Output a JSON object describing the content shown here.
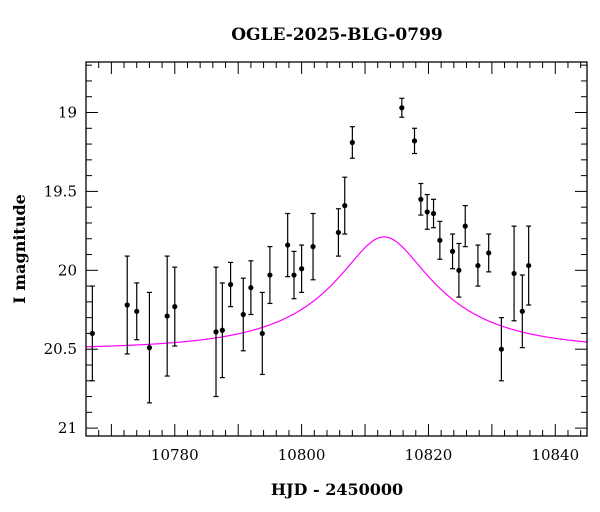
{
  "chart_data": {
    "type": "scatter",
    "title": "OGLE-2025-BLG-0799",
    "xlabel": "HJD - 2450000",
    "ylabel": "I magnitude",
    "xlim": [
      10766,
      10845
    ],
    "ylim": [
      21.05,
      18.68
    ],
    "y_inverted": true,
    "x_ticks": [
      10780,
      10800,
      10820,
      10840
    ],
    "y_ticks": [
      19,
      19.5,
      20,
      20.5,
      21
    ],
    "x_tick_labels": [
      "10780",
      "10800",
      "10820",
      "10840"
    ],
    "y_tick_labels": [
      "19",
      "19.5",
      "20",
      "20.5",
      "21"
    ],
    "grid": false,
    "colors": {
      "points": "#000000",
      "model": "#ff00ff"
    },
    "points": [
      {
        "x": 10767.0,
        "y": 20.4,
        "err": 0.3
      },
      {
        "x": 10772.5,
        "y": 20.22,
        "err": 0.31
      },
      {
        "x": 10774.0,
        "y": 20.26,
        "err": 0.18
      },
      {
        "x": 10776.0,
        "y": 20.49,
        "err": 0.35
      },
      {
        "x": 10778.8,
        "y": 20.29,
        "err": 0.38
      },
      {
        "x": 10780.0,
        "y": 20.23,
        "err": 0.25
      },
      {
        "x": 10786.5,
        "y": 20.39,
        "err": 0.41
      },
      {
        "x": 10787.5,
        "y": 20.38,
        "err": 0.3
      },
      {
        "x": 10788.8,
        "y": 20.09,
        "err": 0.14
      },
      {
        "x": 10790.8,
        "y": 20.28,
        "err": 0.23
      },
      {
        "x": 10792.0,
        "y": 20.11,
        "err": 0.17
      },
      {
        "x": 10793.8,
        "y": 20.4,
        "err": 0.26
      },
      {
        "x": 10795.0,
        "y": 20.03,
        "err": 0.18
      },
      {
        "x": 10797.8,
        "y": 19.84,
        "err": 0.2
      },
      {
        "x": 10798.8,
        "y": 20.03,
        "err": 0.15
      },
      {
        "x": 10800.0,
        "y": 19.99,
        "err": 0.15
      },
      {
        "x": 10801.8,
        "y": 19.85,
        "err": 0.21
      },
      {
        "x": 10805.8,
        "y": 19.76,
        "err": 0.15
      },
      {
        "x": 10806.8,
        "y": 19.59,
        "err": 0.18
      },
      {
        "x": 10808.0,
        "y": 19.19,
        "err": 0.1
      },
      {
        "x": 10815.8,
        "y": 18.97,
        "err": 0.06
      },
      {
        "x": 10817.8,
        "y": 19.18,
        "err": 0.08
      },
      {
        "x": 10818.8,
        "y": 19.55,
        "err": 0.1
      },
      {
        "x": 10819.8,
        "y": 19.63,
        "err": 0.11
      },
      {
        "x": 10820.8,
        "y": 19.64,
        "err": 0.09
      },
      {
        "x": 10821.8,
        "y": 19.81,
        "err": 0.12
      },
      {
        "x": 10823.8,
        "y": 19.88,
        "err": 0.11
      },
      {
        "x": 10824.8,
        "y": 20.0,
        "err": 0.17
      },
      {
        "x": 10825.8,
        "y": 19.72,
        "err": 0.13
      },
      {
        "x": 10827.8,
        "y": 19.97,
        "err": 0.13
      },
      {
        "x": 10829.5,
        "y": 19.89,
        "err": 0.12
      },
      {
        "x": 10831.5,
        "y": 20.5,
        "err": 0.2
      },
      {
        "x": 10833.5,
        "y": 20.02,
        "err": 0.3
      },
      {
        "x": 10834.8,
        "y": 20.26,
        "err": 0.23
      },
      {
        "x": 10835.8,
        "y": 19.97,
        "err": 0.25
      }
    ],
    "model": {
      "type": "paczynski",
      "t0": 10813.0,
      "u0": 0.33,
      "tE": 19.5,
      "baseline_mag": 20.5,
      "blend_fraction": 0.43
    }
  }
}
